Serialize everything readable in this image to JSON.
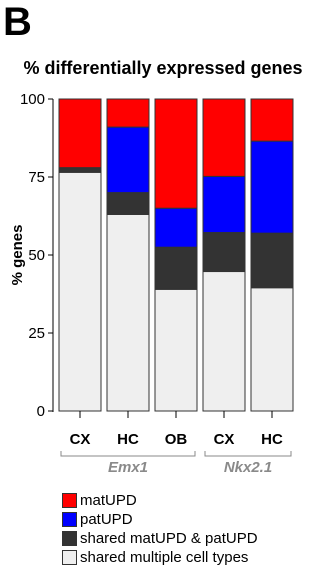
{
  "panel_letter": "B",
  "chart_data": {
    "type": "bar",
    "stacked": true,
    "title": "% differentially expressed genes",
    "ylabel": "% genes",
    "ylim": [
      0,
      100
    ],
    "yticks": [
      0,
      25,
      50,
      75,
      100
    ],
    "categories": [
      "CX",
      "HC",
      "OB",
      "CX",
      "HC"
    ],
    "groups": [
      {
        "label": "Emx1",
        "categories": [
          0,
          1,
          2
        ]
      },
      {
        "label": "Nkx2.1",
        "categories": [
          3,
          4
        ]
      }
    ],
    "series": [
      {
        "name": "shared multiple cell types",
        "color": "#efefef",
        "values": [
          76.5,
          63,
          39,
          44.7,
          39.5
        ]
      },
      {
        "name": "shared matUPD & patUPD",
        "color": "#333333",
        "values": [
          1.5,
          7,
          13.5,
          12.5,
          17.5
        ]
      },
      {
        "name": "patUPD",
        "color": "#0000ff",
        "values": [
          0,
          21,
          12.5,
          18,
          29.5
        ]
      },
      {
        "name": "matUPD",
        "color": "#ff0000",
        "values": [
          22,
          9,
          35,
          24.8,
          13.5
        ]
      }
    ],
    "legend": [
      {
        "label": "matUPD",
        "color": "#ff0000"
      },
      {
        "label": "patUPD",
        "color": "#0000ff"
      },
      {
        "label": "shared matUPD & patUPD",
        "color": "#333333"
      },
      {
        "label": "shared multiple cell types",
        "color": "#efefef"
      }
    ],
    "legend_position": "bottom",
    "grid": false
  }
}
